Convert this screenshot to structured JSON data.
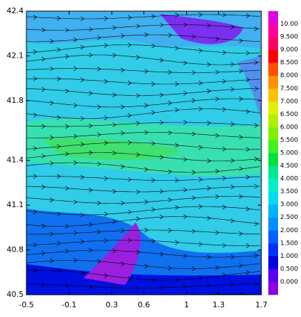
{
  "chart_data": {
    "type": "contour",
    "xlim": [
      -0.5,
      1.7
    ],
    "ylim": [
      40.5,
      42.4
    ],
    "xticks": [
      -0.5,
      -0.1,
      0.3,
      0.6,
      1.0,
      1.3,
      1.7
    ],
    "yticks": [
      40.5,
      40.8,
      41.1,
      41.4,
      41.8,
      42.1,
      42.4
    ],
    "colorbar": {
      "levels": [
        {
          "value": 0,
          "label": "0.000"
        },
        {
          "value": 0.5,
          "label": "0.500"
        },
        {
          "value": 1,
          "label": "1.000"
        },
        {
          "value": 1.5,
          "label": "1.500"
        },
        {
          "value": 2,
          "label": "2.000"
        },
        {
          "value": 2.5,
          "label": "2.500"
        },
        {
          "value": 3,
          "label": "3.000"
        },
        {
          "value": 3.5,
          "label": "3.500"
        },
        {
          "value": 4,
          "label": "4.000"
        },
        {
          "value": 4.5,
          "label": "4.500"
        },
        {
          "value": 5,
          "label": "5.000"
        },
        {
          "value": 5.5,
          "label": "5.500"
        },
        {
          "value": 6,
          "label": "6.000"
        },
        {
          "value": 6.5,
          "label": "6.500"
        },
        {
          "value": 7,
          "label": "7.000"
        },
        {
          "value": 7.5,
          "label": "7.500"
        },
        {
          "value": 8,
          "label": "8.000"
        },
        {
          "value": 8.5,
          "label": "8.500"
        },
        {
          "value": 9,
          "label": "9.000"
        },
        {
          "value": 9.5,
          "label": "9.500"
        },
        {
          "value": 10,
          "label": "10.00"
        }
      ],
      "colors": [
        "#8a00e0",
        "#5a00f0",
        "#0000e0",
        "#0030ff",
        "#0060ff",
        "#0090ff",
        "#00b4ff",
        "#00dcf0",
        "#00f0c8",
        "#00e890",
        "#00e040",
        "#40f020",
        "#80f000",
        "#b0f000",
        "#e0f000",
        "#ffc000",
        "#ff9000",
        "#ff5000",
        "#ff0000",
        "#ff0060",
        "#ff00a0",
        "#e000e0"
      ]
    }
  }
}
